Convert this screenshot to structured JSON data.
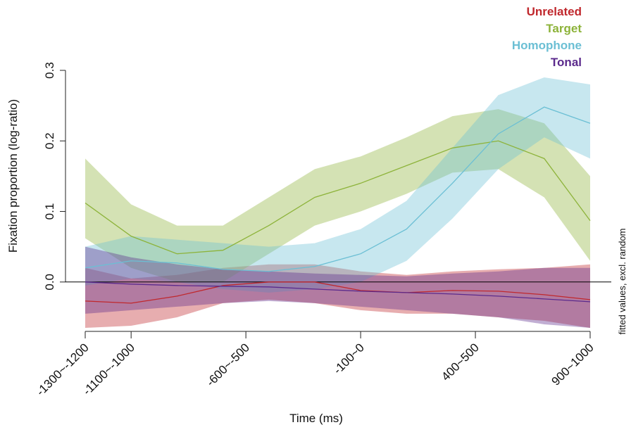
{
  "chart_data": {
    "type": "band-line",
    "x_label": "Time (ms)",
    "y_label": "Fixation proportion (log-ratio)",
    "right_label": "fitted values, excl. random",
    "x": [
      -1250,
      -1050,
      -850,
      -650,
      -450,
      -250,
      -50,
      150,
      350,
      550,
      750,
      950
    ],
    "xlim": [
      -1250,
      950
    ],
    "xticks": [
      {
        "value": -1250,
        "label": "-1300~-1200"
      },
      {
        "value": -1050,
        "label": "-1100~-1000"
      },
      {
        "value": -550,
        "label": "-600~-500"
      },
      {
        "value": -50,
        "label": "-100~0"
      },
      {
        "value": 450,
        "label": "400~500"
      },
      {
        "value": 950,
        "label": "900~1000"
      }
    ],
    "ylim": [
      -0.07,
      0.3
    ],
    "yticks": [
      {
        "value": 0,
        "label": "0.0"
      },
      0.1,
      0.2,
      0.3
    ],
    "zero_line": true,
    "series": [
      {
        "name": "Unrelated",
        "color": "#c0282d",
        "values": [
          -0.027,
          -0.03,
          -0.02,
          -0.005,
          0.0,
          0.0,
          -0.012,
          -0.015,
          -0.012,
          -0.013,
          -0.018,
          -0.025
        ],
        "lower": [
          -0.065,
          -0.062,
          -0.05,
          -0.03,
          -0.025,
          -0.03,
          -0.04,
          -0.045,
          -0.045,
          -0.05,
          -0.055,
          -0.065
        ],
        "upper": [
          0.02,
          0.005,
          0.01,
          0.02,
          0.025,
          0.025,
          0.015,
          0.01,
          0.015,
          0.018,
          0.02,
          0.025
        ]
      },
      {
        "name": "Target",
        "color": "#8db33a",
        "values": [
          0.112,
          0.065,
          0.04,
          0.045,
          0.08,
          0.12,
          0.14,
          0.165,
          0.19,
          0.2,
          0.175,
          0.087
        ],
        "lower": [
          0.062,
          0.02,
          0.0,
          0.0,
          0.04,
          0.08,
          0.1,
          0.125,
          0.155,
          0.16,
          0.12,
          0.03
        ],
        "upper": [
          0.175,
          0.11,
          0.08,
          0.08,
          0.12,
          0.16,
          0.178,
          0.205,
          0.235,
          0.245,
          0.225,
          0.15
        ]
      },
      {
        "name": "Homophone",
        "color": "#6bbfd4",
        "values": [
          0.02,
          0.03,
          0.027,
          0.018,
          0.015,
          0.022,
          0.04,
          0.075,
          0.14,
          0.21,
          0.248,
          0.225
        ],
        "lower": [
          -0.005,
          0.005,
          0.0,
          -0.01,
          -0.015,
          -0.01,
          0.0,
          0.03,
          0.09,
          0.16,
          0.205,
          0.175
        ],
        "upper": [
          0.05,
          0.065,
          0.06,
          0.055,
          0.05,
          0.055,
          0.075,
          0.115,
          0.19,
          0.265,
          0.29,
          0.28
        ]
      },
      {
        "name": "Tonal",
        "color": "#5b2a8c",
        "values": [
          0.0,
          -0.003,
          -0.005,
          -0.006,
          -0.007,
          -0.01,
          -0.013,
          -0.015,
          -0.017,
          -0.02,
          -0.024,
          -0.028
        ],
        "lower": [
          -0.045,
          -0.04,
          -0.035,
          -0.03,
          -0.027,
          -0.03,
          -0.035,
          -0.04,
          -0.045,
          -0.05,
          -0.06,
          -0.065
        ],
        "upper": [
          0.05,
          0.035,
          0.025,
          0.018,
          0.015,
          0.012,
          0.01,
          0.008,
          0.012,
          0.015,
          0.02,
          0.02
        ]
      }
    ]
  }
}
